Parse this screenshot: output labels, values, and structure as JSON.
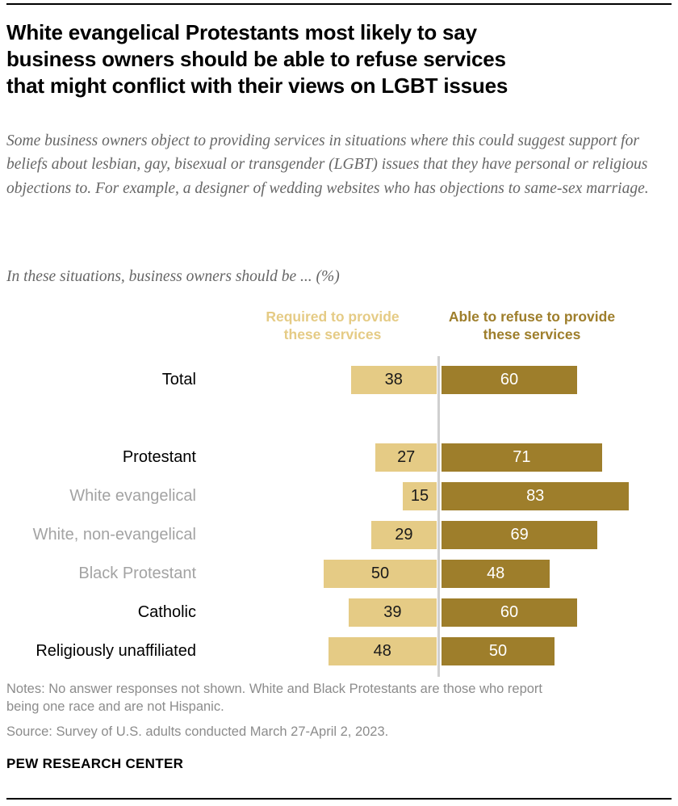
{
  "header": {
    "title_lines": [
      "White evangelical Protestants most likely to say",
      "business owners should be able to refuse services",
      "that might conflict with their views on LGBT issues"
    ],
    "description": "Some business owners object to providing services in situations where this could suggest support for beliefs about lesbian, gay, bisexual or transgender (LGBT) issues that they have personal or religious objections to. For example, a designer of wedding websites who has objections to same-sex marriage.",
    "prompt": "In these situations, business owners should be ... (%)"
  },
  "legend": {
    "left_lines": [
      "Required to provide",
      "these services"
    ],
    "right_lines": [
      "Able to refuse to provide",
      "these services"
    ]
  },
  "chart_data": {
    "type": "bar",
    "orientation": "diverging-horizontal",
    "title": "In these situations, business owners should be ... (%)",
    "categories": [
      "Total",
      "Protestant",
      "White evangelical",
      "White, non-evangelical",
      "Black Protestant",
      "Catholic",
      "Religiously unaffiliated"
    ],
    "series": [
      {
        "name": "Required to provide these services",
        "values": [
          38,
          27,
          15,
          29,
          50,
          39,
          48
        ],
        "color": "#E5CB85",
        "value_text_color": "#1a1a1a"
      },
      {
        "name": "Able to refuse to provide these services",
        "values": [
          60,
          71,
          83,
          69,
          48,
          60,
          50
        ],
        "color": "#9E7E2B",
        "value_text_color": "#ffffff"
      }
    ],
    "muted_category_indexes": [
      2,
      3,
      4
    ],
    "muted_label_color": "#A3A3A3",
    "label_color": "#000000",
    "axis_color": "#CFCFCF",
    "xlim": [
      0,
      100
    ],
    "unit": "%",
    "legend_position": "top",
    "grid": false
  },
  "notes": {
    "notes_text": "Notes: No answer responses not shown. White and Black Protestants are those who report being one race and are not Hispanic.",
    "source_text": "Source: Survey of U.S. adults conducted March 27-April 2, 2023."
  },
  "footer": {
    "brand": "PEW RESEARCH CENTER"
  }
}
